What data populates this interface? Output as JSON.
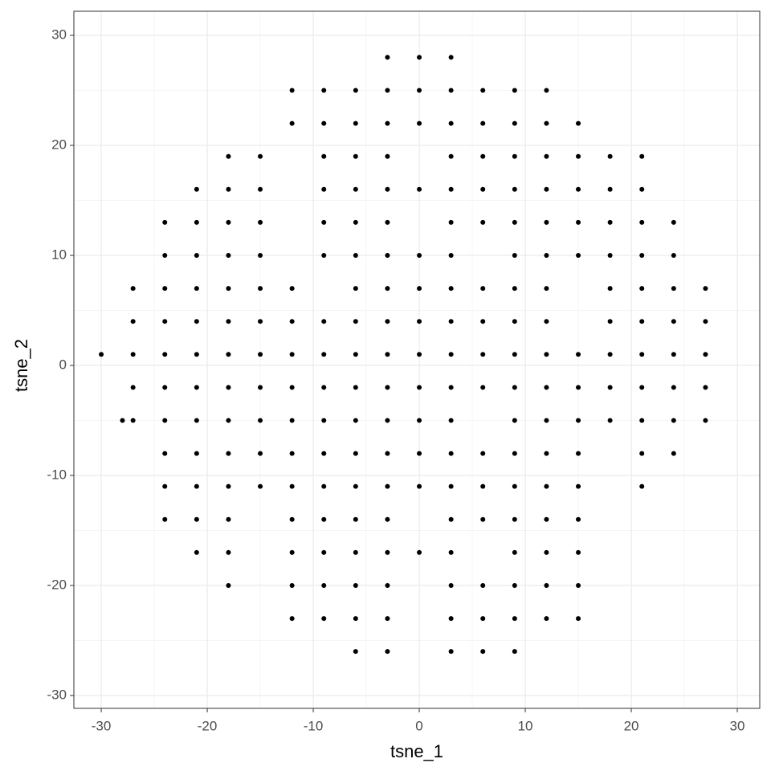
{
  "chart_data": {
    "type": "scatter",
    "x_label": "tsne_1",
    "y_label": "tsne_2",
    "xlim": [
      -32.58,
      32.12
    ],
    "ylim": [
      -31.17,
      32.19
    ],
    "xticks": [
      -30,
      -20,
      -10,
      0,
      10,
      20,
      30
    ],
    "yticks": [
      -30,
      -20,
      -10,
      0,
      10,
      20,
      30
    ],
    "x_minor_grid": [
      -25,
      -15,
      -5,
      5,
      15,
      25
    ],
    "y_minor_grid": [
      -25,
      -15,
      -5,
      5,
      15,
      25
    ],
    "grid": true,
    "color": "#000000",
    "x": [
      -3,
      0,
      3,
      -12,
      -9,
      -6,
      -3,
      0,
      3,
      6,
      9,
      12,
      -12,
      -9,
      -6,
      -3,
      0,
      3,
      6,
      9,
      12,
      15,
      -18,
      -15,
      -9,
      -6,
      -3,
      3,
      6,
      9,
      12,
      15,
      18,
      21,
      -21,
      -18,
      -15,
      -9,
      -6,
      -3,
      0,
      3,
      6,
      9,
      12,
      15,
      18,
      21,
      -24,
      -21,
      -18,
      -15,
      -9,
      -6,
      -3,
      3,
      6,
      9,
      12,
      15,
      18,
      21,
      24,
      -24,
      -21,
      -18,
      -15,
      -9,
      -6,
      -3,
      0,
      3,
      9,
      12,
      15,
      18,
      21,
      24,
      -27,
      -24,
      -21,
      -18,
      -15,
      -12,
      -6,
      -3,
      0,
      3,
      6,
      9,
      12,
      18,
      21,
      24,
      27,
      -27,
      -24,
      -21,
      -18,
      -15,
      -12,
      -9,
      -6,
      -3,
      0,
      3,
      6,
      9,
      12,
      18,
      21,
      24,
      27,
      -27,
      -24,
      -21,
      -18,
      -15,
      -12,
      -9,
      -6,
      -3,
      0,
      3,
      6,
      9,
      12,
      15,
      18,
      21,
      24,
      27,
      -27,
      -24,
      -21,
      -18,
      -15,
      -12,
      -9,
      -6,
      -3,
      0,
      3,
      6,
      9,
      12,
      15,
      18,
      21,
      24,
      27,
      -27,
      -24,
      -21,
      -18,
      -15,
      -12,
      -9,
      -6,
      -3,
      0,
      3,
      9,
      12,
      15,
      18,
      21,
      24,
      27,
      -24,
      -21,
      -18,
      -15,
      -12,
      -9,
      -6,
      -3,
      0,
      3,
      6,
      9,
      12,
      15,
      21,
      24,
      -24,
      -21,
      -18,
      -15,
      -12,
      -9,
      -6,
      -3,
      0,
      3,
      6,
      9,
      12,
      15,
      21,
      -24,
      -21,
      -18,
      -12,
      -9,
      -6,
      -3,
      3,
      6,
      9,
      12,
      15,
      -21,
      -18,
      -12,
      -9,
      -6,
      -3,
      0,
      3,
      9,
      12,
      15,
      -18,
      -12,
      -9,
      -6,
      -3,
      3,
      6,
      9,
      12,
      15,
      -12,
      -9,
      -6,
      -3,
      3,
      6,
      9,
      12,
      15,
      -6,
      -3,
      3,
      6,
      9,
      -30,
      -28
    ],
    "y": [
      28,
      28,
      28,
      25,
      25,
      25,
      25,
      25,
      25,
      25,
      25,
      25,
      22,
      22,
      22,
      22,
      22,
      22,
      22,
      22,
      22,
      22,
      19,
      19,
      19,
      19,
      19,
      19,
      19,
      19,
      19,
      19,
      19,
      19,
      16,
      16,
      16,
      16,
      16,
      16,
      16,
      16,
      16,
      16,
      16,
      16,
      16,
      16,
      13,
      13,
      13,
      13,
      13,
      13,
      13,
      13,
      13,
      13,
      13,
      13,
      13,
      13,
      13,
      10,
      10,
      10,
      10,
      10,
      10,
      10,
      10,
      10,
      10,
      10,
      10,
      10,
      10,
      10,
      7,
      7,
      7,
      7,
      7,
      7,
      7,
      7,
      7,
      7,
      7,
      7,
      7,
      7,
      7,
      7,
      7,
      4,
      4,
      4,
      4,
      4,
      4,
      4,
      4,
      4,
      4,
      4,
      4,
      4,
      4,
      4,
      4,
      4,
      4,
      1,
      1,
      1,
      1,
      1,
      1,
      1,
      1,
      1,
      1,
      1,
      1,
      1,
      1,
      1,
      1,
      1,
      1,
      1,
      -2,
      -2,
      -2,
      -2,
      -2,
      -2,
      -2,
      -2,
      -2,
      -2,
      -2,
      -2,
      -2,
      -2,
      -2,
      -2,
      -2,
      -2,
      -2,
      -5,
      -5,
      -5,
      -5,
      -5,
      -5,
      -5,
      -5,
      -5,
      -5,
      -5,
      -5,
      -5,
      -5,
      -5,
      -5,
      -5,
      -5,
      -8,
      -8,
      -8,
      -8,
      -8,
      -8,
      -8,
      -8,
      -8,
      -8,
      -8,
      -8,
      -8,
      -8,
      -8,
      -8,
      -11,
      -11,
      -11,
      -11,
      -11,
      -11,
      -11,
      -11,
      -11,
      -11,
      -11,
      -11,
      -11,
      -11,
      -11,
      -14,
      -14,
      -14,
      -14,
      -14,
      -14,
      -14,
      -14,
      -14,
      -14,
      -14,
      -14,
      -17,
      -17,
      -17,
      -17,
      -17,
      -17,
      -17,
      -17,
      -17,
      -17,
      -17,
      -20,
      -20,
      -20,
      -20,
      -20,
      -20,
      -20,
      -20,
      -20,
      -20,
      -23,
      -23,
      -23,
      -23,
      -23,
      -23,
      -23,
      -23,
      -23,
      -26,
      -26,
      -26,
      -26,
      -26,
      1,
      -5
    ]
  }
}
